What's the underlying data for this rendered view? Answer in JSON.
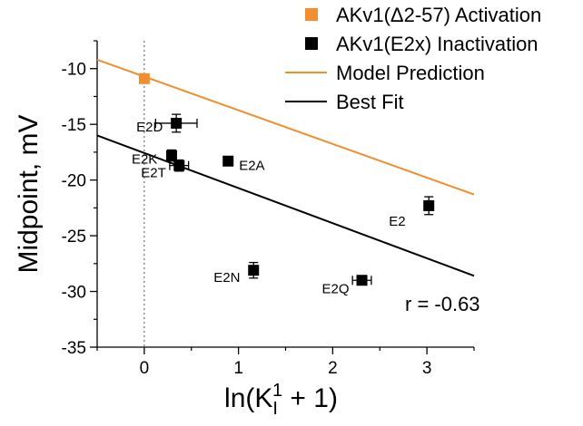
{
  "chart_data": {
    "type": "scatter",
    "xlabel": {
      "pre": "ln(K",
      "sub": "I",
      "sup": "1",
      "post": " + 1)"
    },
    "ylabel": "Midpoint, mV",
    "xlim": [
      -0.5,
      3.5
    ],
    "ylim": [
      -35,
      -7.5
    ],
    "xticks": [
      0,
      1,
      2,
      3
    ],
    "yticks": [
      -35,
      -30,
      -25,
      -20,
      -15,
      -10
    ],
    "reference_line_x": 0,
    "colors": {
      "activation": "#f28e2b",
      "inactivation": "#000000",
      "model": "#f28e2b",
      "fit": "#000000"
    },
    "series": [
      {
        "name": "AKv1(Δ2-57) Activation",
        "marker": "square",
        "color": "#f28e2b",
        "points": [
          {
            "x": 0,
            "y": -10.9,
            "label": ""
          }
        ]
      },
      {
        "name": "AKv1(E2x) Inactivation",
        "marker": "square",
        "color": "#000000",
        "points": [
          {
            "x": 0.34,
            "y": -14.9,
            "xerr": 0.22,
            "yerr": 0.8,
            "label": "E2D"
          },
          {
            "x": 0.29,
            "y": -17.8,
            "xerr": 0.0,
            "yerr": 0.5,
            "label": "E2K"
          },
          {
            "x": 0.37,
            "y": -18.7,
            "xerr": 0.1,
            "yerr": 0.5,
            "label": "E2T"
          },
          {
            "x": 0.89,
            "y": -18.3,
            "xerr": 0.0,
            "yerr": 0.3,
            "label": "E2A"
          },
          {
            "x": 3.02,
            "y": -22.3,
            "xerr": 0.0,
            "yerr": 0.8,
            "label": "E2"
          },
          {
            "x": 1.16,
            "y": -28.1,
            "xerr": 0.0,
            "yerr": 0.7,
            "label": "E2N"
          },
          {
            "x": 2.31,
            "y": -29.0,
            "xerr": 0.1,
            "yerr": 0.3,
            "label": "E2Q"
          }
        ]
      }
    ],
    "lines": [
      {
        "name": "Model Prediction",
        "color": "#f28e2b",
        "x": [
          -0.5,
          3.5
        ],
        "y": [
          -9.2,
          -21.3
        ]
      },
      {
        "name": "Best Fit",
        "color": "#000000",
        "x": [
          -0.5,
          3.5
        ],
        "y": [
          -16.0,
          -28.6
        ]
      }
    ],
    "annotation": "r = -0.63",
    "legend_position": "top-right",
    "grid": false
  }
}
